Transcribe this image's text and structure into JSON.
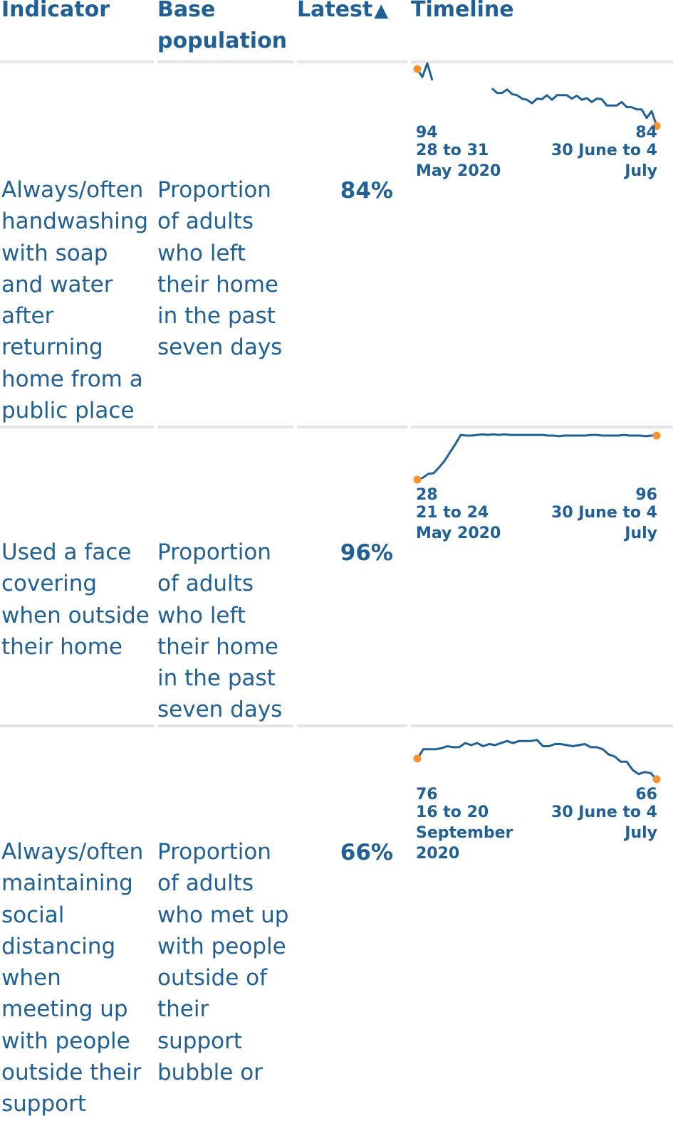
{
  "header": {
    "indicator": "Indicator",
    "base_population_line1": "Base",
    "base_population_line2": "population",
    "latest": "Latest",
    "sort_icon": "sort-ascending-triangle",
    "timeline": "Timeline"
  },
  "colors": {
    "text": "#206095",
    "line": "#206095",
    "marker": "#f39431",
    "rule": "#e4e4e4"
  },
  "rows": [
    {
      "indicator": "Always/often handwashing with soap and water after returning home from a public place",
      "base_population": "Proportion of adults who left their home in the past seven days",
      "latest": "84%",
      "timeline": {
        "start_value": "94",
        "start_date": "28 to 31 May 2020",
        "end_value": "84",
        "end_date": "30 June to 4 July",
        "y_range": [
          84,
          94
        ],
        "segments": [
          [
            94,
            92.6,
            95,
            92
          ],
          [
            90.6,
            89.8,
            89.8,
            90.4,
            89.6,
            89.4,
            88.8,
            88.6,
            88,
            88.8,
            88.7,
            89.4,
            88.6,
            89.4,
            89.4,
            89.4,
            88.8,
            89.3,
            88.6,
            88.9,
            88.2,
            88.8,
            88.7,
            87.6,
            87.6,
            87.6,
            88.2,
            87.3,
            87.3,
            86.9,
            86.9,
            85.4,
            86.6,
            84
          ]
        ]
      }
    },
    {
      "indicator": "Used a face covering when outside their home",
      "base_population": "Proportion of adults who left their home in the past seven days",
      "latest": "96%",
      "timeline": {
        "start_value": "28",
        "start_date": "21 to 24 May 2020",
        "end_value": "96",
        "end_date": "30 June to 4 July",
        "y_range": [
          28,
          96
        ],
        "segments": [
          [
            28,
            31,
            37,
            38,
            47,
            57,
            70,
            83,
            97,
            96,
            96,
            97,
            98,
            97,
            98,
            97,
            98,
            97,
            97,
            97,
            97,
            97,
            97,
            97,
            96,
            96,
            95,
            96,
            96,
            96,
            96,
            96,
            97,
            97,
            96,
            96,
            96,
            96,
            97,
            96,
            96,
            96,
            95,
            96,
            96
          ]
        ]
      }
    },
    {
      "indicator": "Always/often maintaining social distancing when meeting up with people outside their support",
      "base_population": "Proportion of adults who met up with people outside of their support bubble or",
      "latest": "66%",
      "timeline": {
        "start_value": "76",
        "start_date": "16 to 20 September 2020",
        "end_value": "66",
        "end_date": "30 June to 4 July",
        "y_range": [
          66,
          88
        ],
        "segments": [
          [
            76,
            80.5,
            80.5,
            80.5,
            81,
            82,
            81.5,
            81.5,
            83.5,
            82.5,
            83.5,
            82,
            83,
            82.5,
            83.5,
            84.5,
            83.5,
            84.5,
            84.5,
            84.5,
            85,
            82,
            82,
            83,
            83,
            82.5,
            82,
            82.5,
            83,
            81.5,
            81.5,
            80.5,
            78,
            77,
            74.5,
            74.5,
            70.5,
            68.5,
            69.5,
            69,
            66
          ]
        ]
      }
    }
  ]
}
